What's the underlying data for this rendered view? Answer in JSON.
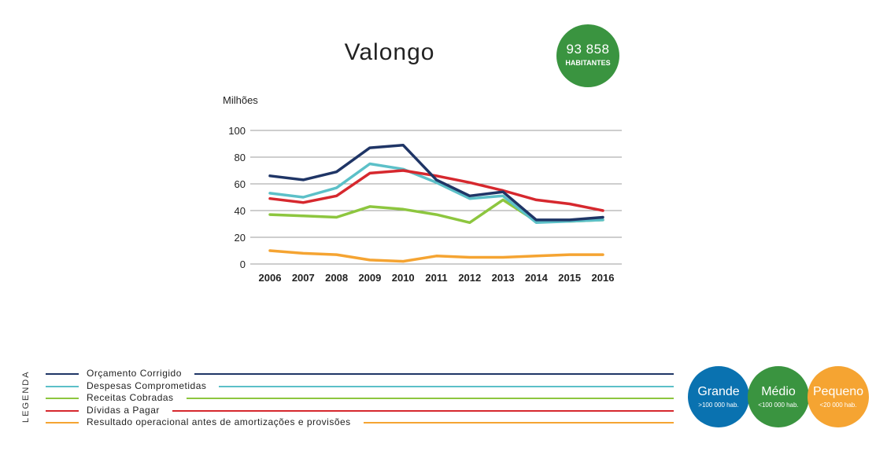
{
  "header": {
    "title": "Valongo",
    "population": {
      "number": "93 858",
      "label": "HABITANTES",
      "color": "#3a9440"
    }
  },
  "chart_data": {
    "type": "line",
    "ylabel": "Milhões",
    "ylim": [
      0,
      100
    ],
    "yticks": [
      0,
      20,
      40,
      60,
      80,
      100
    ],
    "grid": true,
    "categories": [
      "2006",
      "2007",
      "2008",
      "2009",
      "2010",
      "2011",
      "2012",
      "2013",
      "2014",
      "2015",
      "2016"
    ],
    "series": [
      {
        "name": "Orçamento Corrigido",
        "color": "#1f3566",
        "values": [
          66,
          63,
          69,
          87,
          89,
          63,
          51,
          54,
          33,
          33,
          35
        ]
      },
      {
        "name": "Despesas Comprometidas",
        "color": "#5cc0c8",
        "values": [
          53,
          50,
          57,
          75,
          71,
          61,
          49,
          51,
          31,
          32,
          33
        ]
      },
      {
        "name": "Receitas Cobradas",
        "color": "#8dc63f",
        "values": [
          37,
          36,
          35,
          43,
          41,
          37,
          31,
          48,
          32,
          32,
          33
        ]
      },
      {
        "name": "Dívidas a Pagar",
        "color": "#d6282e",
        "values": [
          49,
          46,
          51,
          68,
          70,
          66,
          61,
          55,
          48,
          45,
          40
        ]
      },
      {
        "name": "Resultado operacional antes de amortizações e provisões",
        "color": "#f5a432",
        "values": [
          10,
          8,
          7,
          3,
          2,
          6,
          5,
          5,
          6,
          7,
          7
        ]
      }
    ]
  },
  "legend": {
    "heading": "LEGENDA"
  },
  "size_categories": [
    {
      "name": "Grande",
      "sub": ">100 000 hab.",
      "color": "#0a72b0"
    },
    {
      "name": "Médio",
      "sub": "<100 000 hab.",
      "color": "#3a9440"
    },
    {
      "name": "Pequeno",
      "sub": "<20 000 hab.",
      "color": "#f5a432"
    }
  ]
}
